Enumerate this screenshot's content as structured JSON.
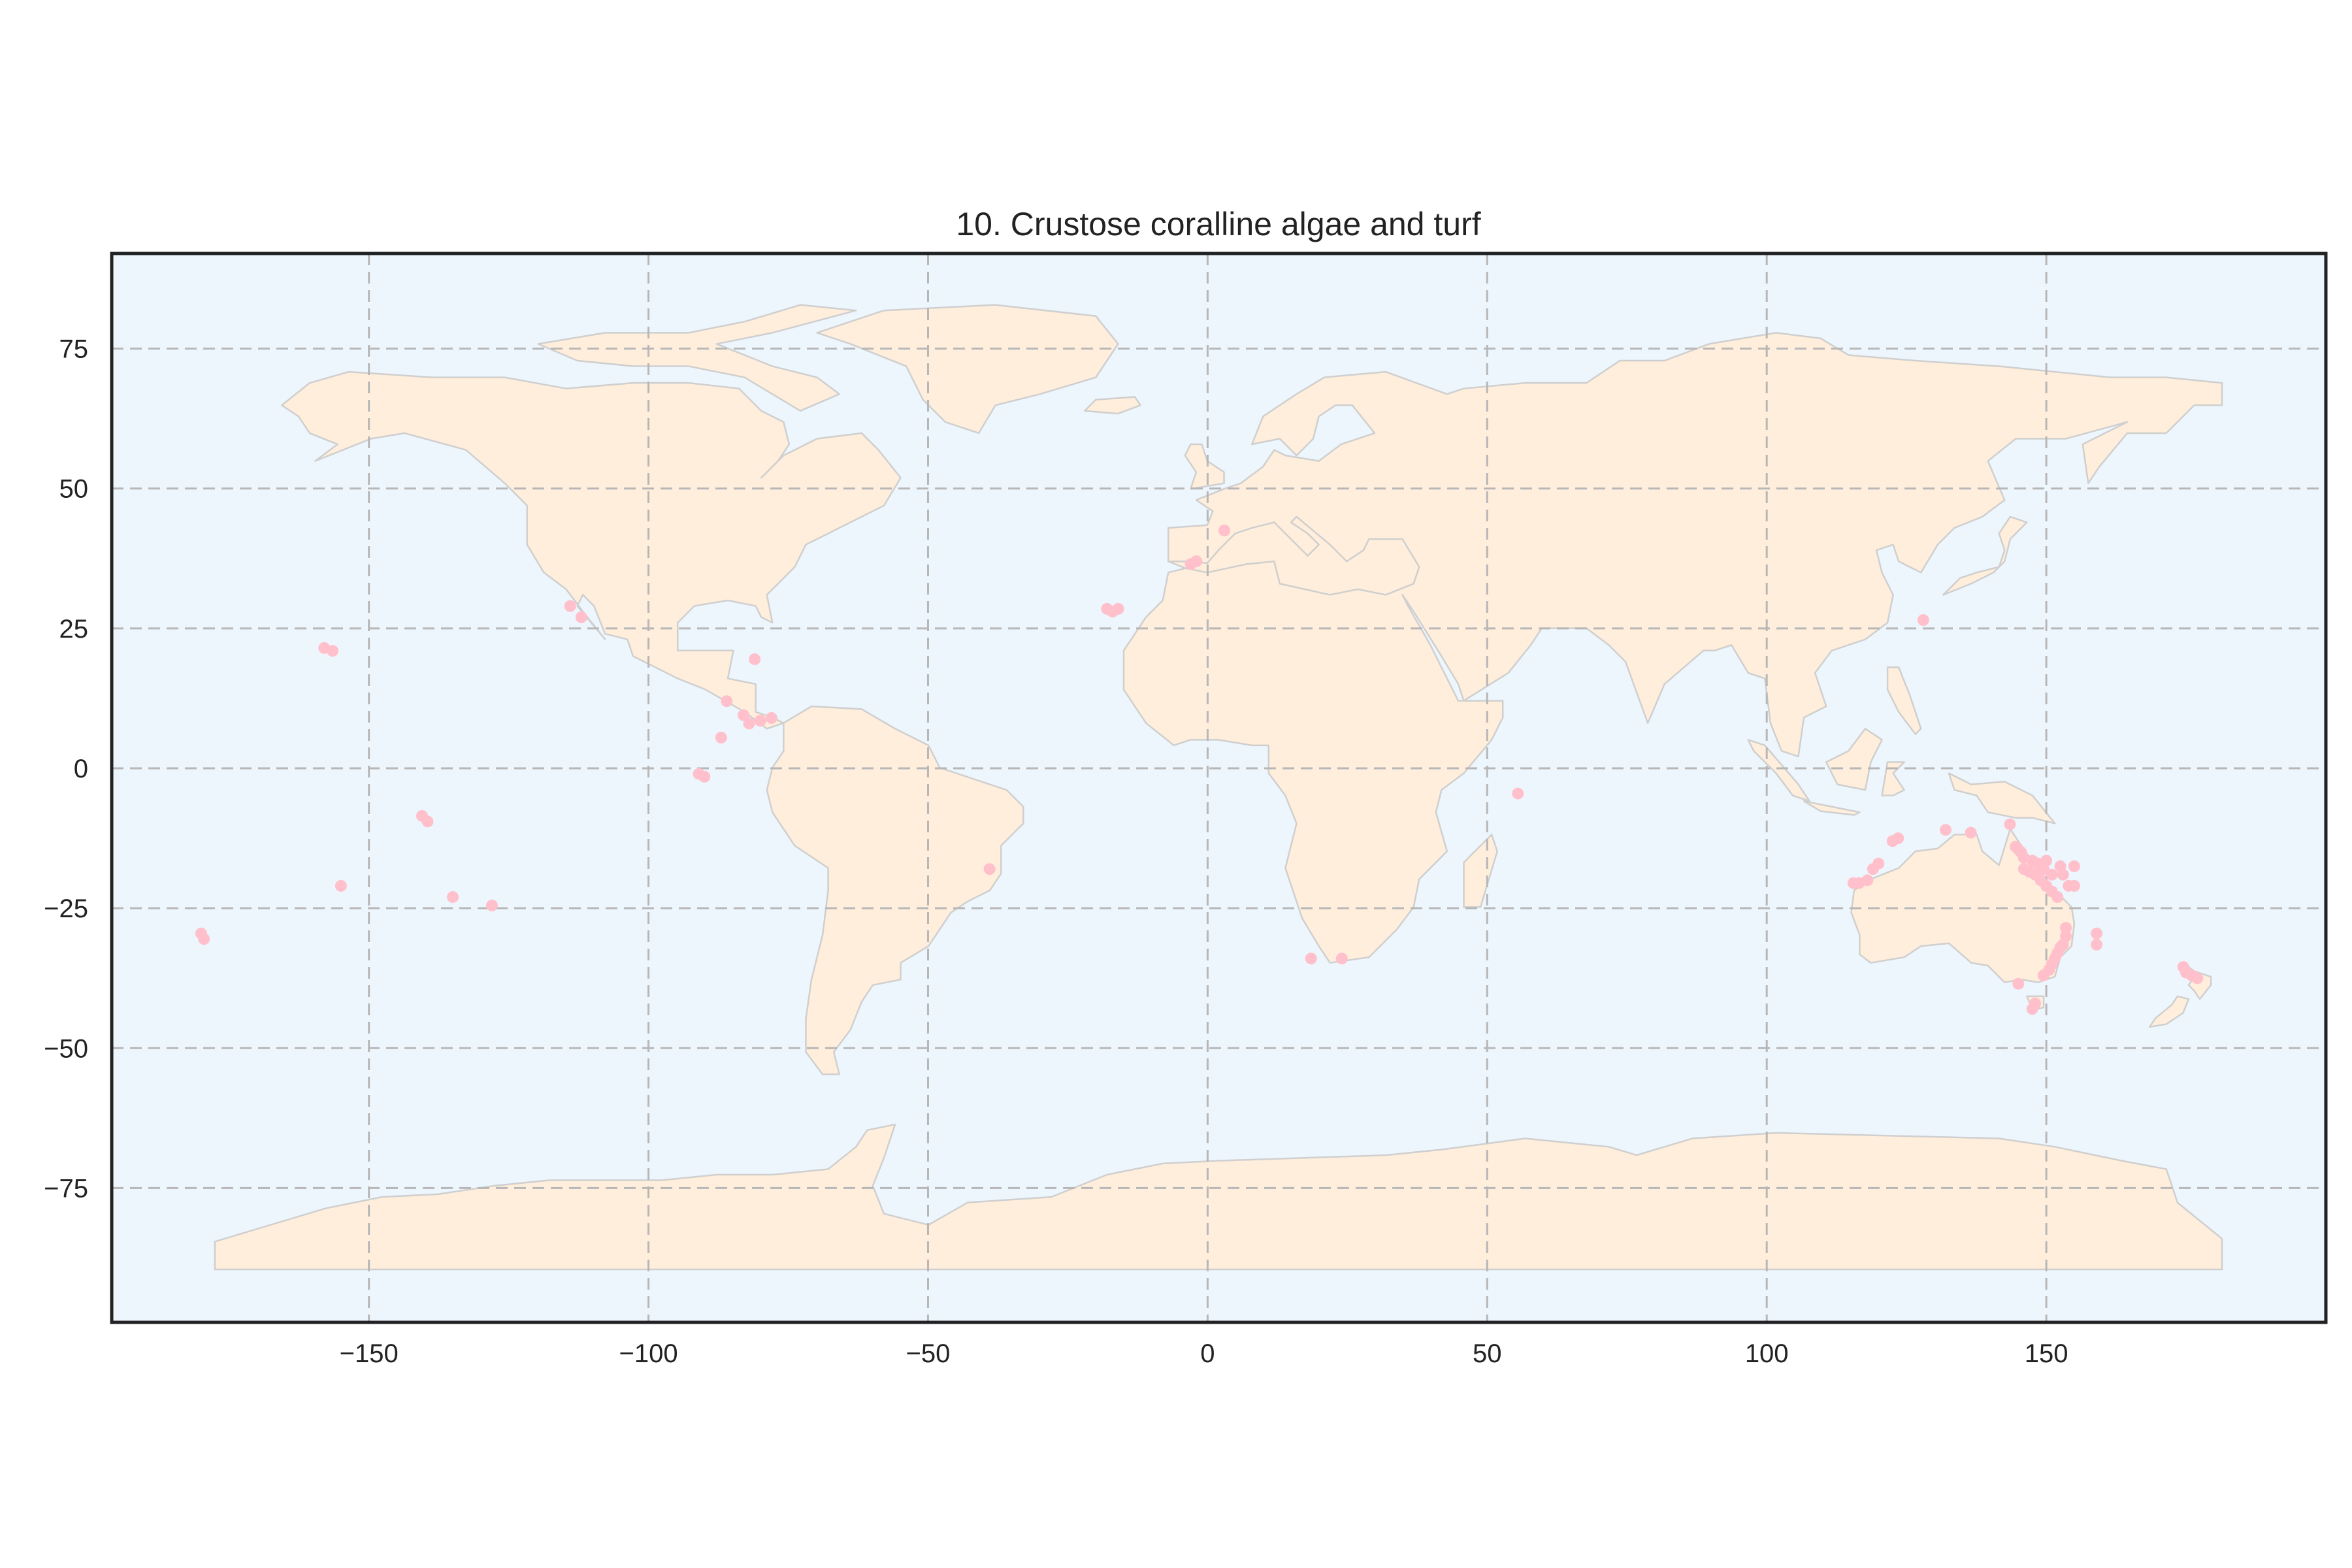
{
  "chart_data": {
    "type": "scatter",
    "title": "10. Crustose coralline algae and turf",
    "xlabel": "",
    "ylabel": "",
    "xlim": [
      -196,
      200
    ],
    "ylim": [
      -99,
      92
    ],
    "xticks": [
      -150,
      -100,
      -50,
      0,
      50,
      100,
      150
    ],
    "xtick_labels": [
      "−150",
      "−100",
      "−50",
      "0",
      "50",
      "100",
      "150"
    ],
    "yticks": [
      75,
      50,
      25,
      0,
      -25,
      -50,
      -75
    ],
    "ytick_labels": [
      "75",
      "50",
      "25",
      "0",
      "−25",
      "−50",
      "−75"
    ],
    "grid": true,
    "colors": {
      "ocean": "#eef6fd",
      "land": "#ffeedb",
      "coastline": "#cfcfcf",
      "points": "#ffc0cb",
      "grid": "#b7b7b7",
      "frame": "#222222"
    },
    "points": [
      {
        "x": -180,
        "y": -29.5
      },
      {
        "x": -179.5,
        "y": -30.5
      },
      {
        "x": -158,
        "y": 21.5
      },
      {
        "x": -156.5,
        "y": 21
      },
      {
        "x": -155,
        "y": -21
      },
      {
        "x": -140.5,
        "y": -8.5
      },
      {
        "x": -139.5,
        "y": -9.5
      },
      {
        "x": -135,
        "y": -23
      },
      {
        "x": -128,
        "y": -24.5
      },
      {
        "x": -114,
        "y": 29
      },
      {
        "x": -112,
        "y": 27
      },
      {
        "x": -91,
        "y": -1
      },
      {
        "x": -90,
        "y": -1.5
      },
      {
        "x": -87,
        "y": 5.5
      },
      {
        "x": -86,
        "y": 12
      },
      {
        "x": -83,
        "y": 9.5
      },
      {
        "x": -82,
        "y": 8
      },
      {
        "x": -80,
        "y": 8.5
      },
      {
        "x": -78,
        "y": 9
      },
      {
        "x": -81,
        "y": 19.5
      },
      {
        "x": -39,
        "y": -18
      },
      {
        "x": -18,
        "y": 28.5
      },
      {
        "x": -17,
        "y": 28
      },
      {
        "x": -16,
        "y": 28.5
      },
      {
        "x": -3,
        "y": 36.5
      },
      {
        "x": -2,
        "y": 37
      },
      {
        "x": 3,
        "y": 42.5
      },
      {
        "x": 18.5,
        "y": -34
      },
      {
        "x": 24,
        "y": -34
      },
      {
        "x": 55.5,
        "y": -4.5
      },
      {
        "x": 115.5,
        "y": -20.5
      },
      {
        "x": 116.5,
        "y": -20.5
      },
      {
        "x": 118,
        "y": -20
      },
      {
        "x": 119,
        "y": -18
      },
      {
        "x": 120,
        "y": -17
      },
      {
        "x": 122.5,
        "y": -13
      },
      {
        "x": 123.5,
        "y": -12.5
      },
      {
        "x": 128,
        "y": 26.5
      },
      {
        "x": 132,
        "y": -11
      },
      {
        "x": 136.5,
        "y": -11.5
      },
      {
        "x": 143.5,
        "y": -10
      },
      {
        "x": 144.5,
        "y": -14
      },
      {
        "x": 145,
        "y": -14.5
      },
      {
        "x": 145.5,
        "y": -15
      },
      {
        "x": 146,
        "y": -16
      },
      {
        "x": 146,
        "y": -18
      },
      {
        "x": 147,
        "y": -18.5
      },
      {
        "x": 147.5,
        "y": -16.5
      },
      {
        "x": 148,
        "y": -19
      },
      {
        "x": 148.5,
        "y": -17
      },
      {
        "x": 149,
        "y": -20
      },
      {
        "x": 149.5,
        "y": -18
      },
      {
        "x": 150,
        "y": -21
      },
      {
        "x": 150,
        "y": -16.5
      },
      {
        "x": 151,
        "y": -19
      },
      {
        "x": 151,
        "y": -22
      },
      {
        "x": 152,
        "y": -23
      },
      {
        "x": 152.5,
        "y": -17.5
      },
      {
        "x": 153,
        "y": -19
      },
      {
        "x": 154,
        "y": -21
      },
      {
        "x": 155,
        "y": -21
      },
      {
        "x": 155,
        "y": -17.5
      },
      {
        "x": 153.5,
        "y": -28.5
      },
      {
        "x": 153.5,
        "y": -30
      },
      {
        "x": 153,
        "y": -31.5
      },
      {
        "x": 152.5,
        "y": -32
      },
      {
        "x": 152,
        "y": -33
      },
      {
        "x": 151.5,
        "y": -34
      },
      {
        "x": 151,
        "y": -35
      },
      {
        "x": 150.5,
        "y": -36
      },
      {
        "x": 149.5,
        "y": -37
      },
      {
        "x": 145,
        "y": -38.5
      },
      {
        "x": 148,
        "y": -42
      },
      {
        "x": 147.5,
        "y": -43
      },
      {
        "x": 159,
        "y": -31.5
      },
      {
        "x": 159,
        "y": -29.5
      },
      {
        "x": 174.5,
        "y": -35.5
      },
      {
        "x": 175,
        "y": -36.5
      },
      {
        "x": 176,
        "y": -37
      },
      {
        "x": 177,
        "y": -37.5
      }
    ]
  }
}
